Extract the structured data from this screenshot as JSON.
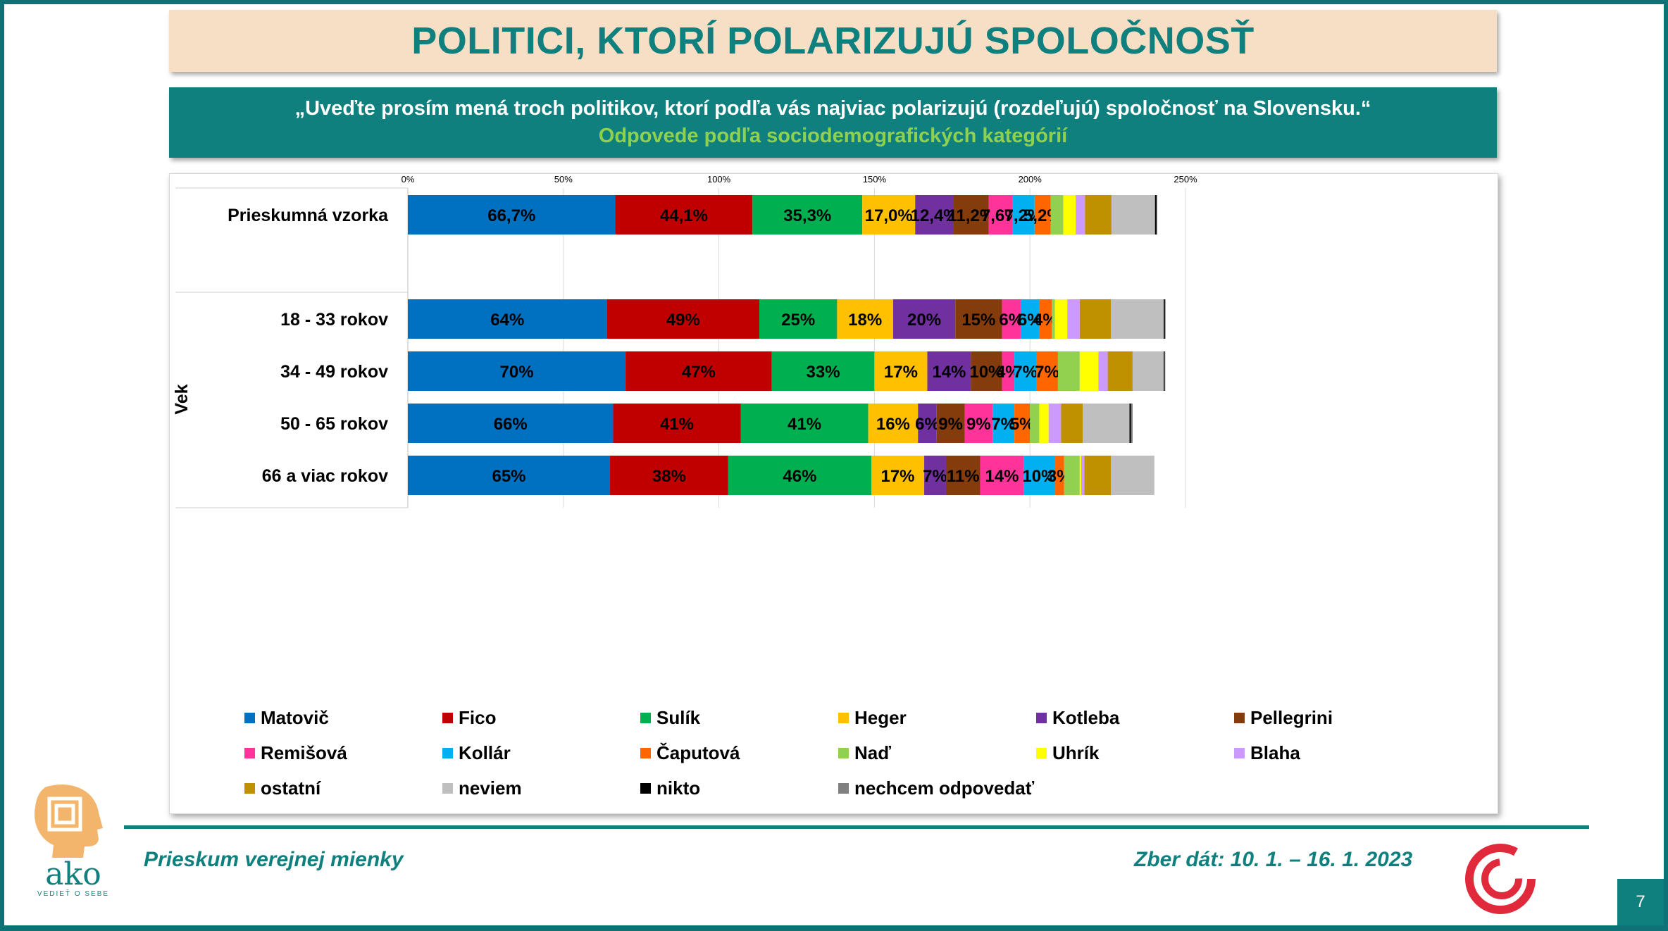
{
  "slide": {
    "title": "POLITICI, KTORÍ POLARIZUJÚ SPOLOČNOSŤ",
    "question": "„Uveďte prosím mená troch politikov, ktorí podľa vás najviac polarizujú (rozdeľujú) spoločnosť na Slovensku.“",
    "subtitle": "Odpovede podľa sociodemografických kategórií",
    "footer_left": "Prieskum verejnej mienky",
    "footer_right": "Zber dát: 10. 1. – 16. 1. 2023",
    "page_number": "7",
    "logo_text": "ako",
    "logo_tagline": "VEDIEŤ O SEBE"
  },
  "chart_data": {
    "type": "bar",
    "orientation": "horizontal",
    "stacked": true,
    "x_ticks": [
      "0%",
      "50%",
      "100%",
      "150%",
      "200%",
      "250%"
    ],
    "xlim": [
      0,
      250
    ],
    "grid": true,
    "legend_position": "bottom",
    "group_label": "Vek",
    "categories": [
      "Prieskumná vzorka",
      "18 - 33 rokov",
      "34 - 49 rokov",
      "50 - 65 rokov",
      "66 a viac rokov"
    ],
    "series": [
      {
        "name": "Matovič",
        "color": "#0070c0",
        "values": [
          66.7,
          64,
          70,
          66,
          65
        ],
        "labels": [
          "66,7%",
          "64%",
          "70%",
          "66%",
          "65%"
        ]
      },
      {
        "name": "Fico",
        "color": "#c00000",
        "values": [
          44.1,
          49,
          47,
          41,
          38
        ],
        "labels": [
          "44,1%",
          "49%",
          "47%",
          "41%",
          "38%"
        ]
      },
      {
        "name": "Sulík",
        "color": "#00b050",
        "values": [
          35.3,
          25,
          33,
          41,
          46
        ],
        "labels": [
          "35,3%",
          "25%",
          "33%",
          "41%",
          "46%"
        ]
      },
      {
        "name": "Heger",
        "color": "#ffc000",
        "values": [
          17.0,
          18,
          17,
          16,
          17
        ],
        "labels": [
          "17,0%",
          "18%",
          "17%",
          "16%",
          "17%"
        ]
      },
      {
        "name": "Kotleba",
        "color": "#7030a0",
        "values": [
          12.4,
          20,
          14,
          6,
          7
        ],
        "labels": [
          "12,4%",
          "20%",
          "14%",
          "6%",
          "7%"
        ]
      },
      {
        "name": "Pellegrini",
        "color": "#843c0c",
        "values": [
          11.2,
          15,
          10,
          9,
          11
        ],
        "labels": [
          "11,2%",
          "15%",
          "10%",
          "9%",
          "11%"
        ]
      },
      {
        "name": "Remišová",
        "color": "#ff3399",
        "values": [
          7.6,
          6,
          4,
          9,
          14
        ],
        "labels": [
          "7,6%",
          "6%",
          "4%",
          "9%",
          "14%"
        ]
      },
      {
        "name": "Kollár",
        "color": "#00b0f0",
        "values": [
          7.2,
          6,
          7,
          7,
          10
        ],
        "labels": [
          "7,2%",
          "6%",
          "7%",
          "7%",
          "10%"
        ]
      },
      {
        "name": "Čaputová",
        "color": "#ff6600",
        "values": [
          5.2,
          4,
          7,
          5,
          3
        ],
        "labels": [
          "5,2%",
          "4%",
          "7%",
          "5%",
          "3%"
        ]
      },
      {
        "name": "Naď",
        "color": "#92d050",
        "values": [
          4,
          1,
          7,
          3,
          5
        ],
        "labels": [
          "",
          "",
          "",
          "",
          ""
        ]
      },
      {
        "name": "Uhrík",
        "color": "#ffff00",
        "values": [
          4,
          4,
          6,
          3,
          0.5
        ],
        "labels": [
          "",
          "",
          "",
          "",
          ""
        ]
      },
      {
        "name": "Blaha",
        "color": "#cc99ff",
        "values": [
          3,
          4,
          3,
          4,
          1
        ],
        "labels": [
          "",
          "",
          "",
          "",
          ""
        ]
      },
      {
        "name": "ostatní",
        "color": "#bf9000",
        "values": [
          8.5,
          10,
          8,
          7,
          8.5
        ],
        "labels": [
          "",
          "",
          "",
          "",
          ""
        ]
      },
      {
        "name": "neviem",
        "color": "#bfbfbf",
        "values": [
          14,
          17,
          10,
          15,
          14
        ],
        "labels": [
          "",
          "",
          "",
          "",
          ""
        ]
      },
      {
        "name": "nikto",
        "color": "#000000",
        "values": [
          0.5,
          0.4,
          0.3,
          0.5,
          0
        ],
        "labels": [
          "",
          "",
          "",
          "",
          ""
        ]
      },
      {
        "name": "nechcem odpovedať",
        "color": "#808080",
        "values": [
          0.2,
          0.2,
          0.2,
          0.5,
          0
        ],
        "labels": [
          "",
          "",
          "",
          "",
          ""
        ]
      }
    ]
  }
}
